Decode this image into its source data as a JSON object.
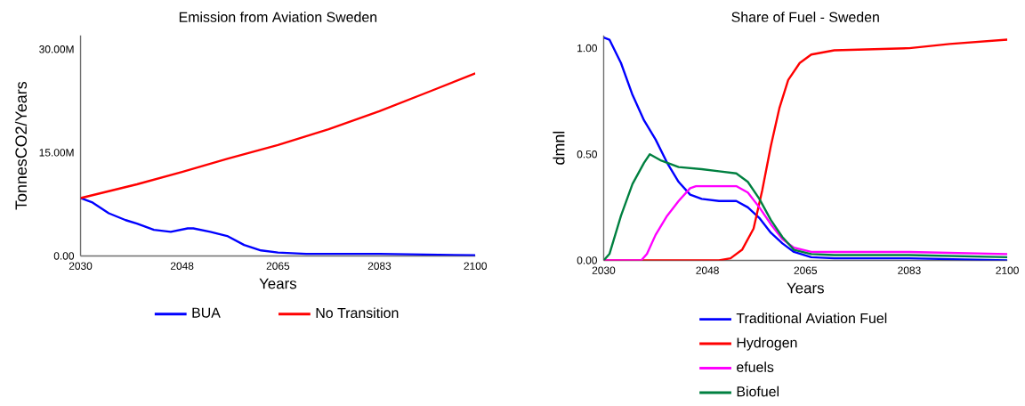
{
  "chart_data": [
    {
      "type": "line",
      "title": "Emission from Aviation Sweden",
      "xlabel": "Years",
      "ylabel": "TonnesCO2/Years",
      "xlim": [
        2030,
        2100
      ],
      "xticks": [
        2030,
        2048,
        2065,
        2083,
        2100
      ],
      "ylim": [
        0,
        32000000
      ],
      "yticks": [
        {
          "value": 0,
          "label": "0.00"
        },
        {
          "value": 15000000,
          "label": "15.00M"
        },
        {
          "value": 30000000,
          "label": "30.00M"
        }
      ],
      "legend": "bottom",
      "series": [
        {
          "name": "BUA",
          "color": "#0000ff",
          "x": [
            2030,
            2032,
            2035,
            2038,
            2040,
            2043,
            2046,
            2049,
            2050,
            2053,
            2056,
            2059,
            2062,
            2065,
            2070,
            2083,
            2100
          ],
          "values": [
            8400000,
            7800000,
            6200000,
            5200000,
            4700000,
            3800000,
            3500000,
            4000000,
            4000000,
            3500000,
            2900000,
            1600000,
            800000,
            500000,
            300000,
            300000,
            100000
          ]
        },
        {
          "name": "No Transition",
          "color": "#ff0000",
          "x": [
            2030,
            2040,
            2048,
            2056,
            2065,
            2074,
            2083,
            2092,
            2100
          ],
          "values": [
            8400000,
            10400000,
            12200000,
            14100000,
            16100000,
            18400000,
            21000000,
            23900000,
            26500000
          ]
        }
      ]
    },
    {
      "type": "line",
      "title": "Share of Fuel - Sweden",
      "xlabel": "Years",
      "ylabel": "dmnl",
      "xlim": [
        2030,
        2100
      ],
      "xticks": [
        2030,
        2048,
        2065,
        2083,
        2100
      ],
      "ylim": [
        0,
        1.06
      ],
      "yticks": [
        {
          "value": 0,
          "label": "0.00"
        },
        {
          "value": 0.5,
          "label": "0.50"
        },
        {
          "value": 1,
          "label": "1.00"
        }
      ],
      "legend": "bottom",
      "series": [
        {
          "name": "Traditional Aviation Fuel",
          "color": "#0000ff",
          "x": [
            2030,
            2031,
            2033,
            2035,
            2037,
            2039,
            2041,
            2043,
            2045,
            2047,
            2050,
            2053,
            2055,
            2057,
            2059,
            2061,
            2063,
            2066,
            2070,
            2083,
            2100
          ],
          "values": [
            1.05,
            1.04,
            0.93,
            0.78,
            0.66,
            0.57,
            0.46,
            0.37,
            0.31,
            0.29,
            0.28,
            0.28,
            0.25,
            0.2,
            0.13,
            0.08,
            0.04,
            0.015,
            0.01,
            0.01,
            0
          ]
        },
        {
          "name": "Hydrogen",
          "color": "#ff0000",
          "x": [
            2030,
            2050,
            2052,
            2054,
            2056,
            2057.5,
            2059,
            2060.5,
            2062,
            2064,
            2066,
            2070,
            2083,
            2090,
            2100
          ],
          "values": [
            0,
            0,
            0.01,
            0.05,
            0.15,
            0.33,
            0.54,
            0.72,
            0.85,
            0.93,
            0.97,
            0.99,
            1.0,
            1.02,
            1.04
          ]
        },
        {
          "name": "efuels",
          "color": "#ff00ff",
          "x": [
            2030,
            2036.5,
            2037.5,
            2039,
            2041,
            2043,
            2045,
            2046,
            2050,
            2053,
            2055,
            2057,
            2059,
            2061,
            2063,
            2066,
            2070,
            2083,
            2100
          ],
          "values": [
            0,
            0,
            0.03,
            0.12,
            0.21,
            0.28,
            0.34,
            0.35,
            0.35,
            0.35,
            0.32,
            0.25,
            0.17,
            0.1,
            0.06,
            0.04,
            0.04,
            0.04,
            0.03
          ]
        },
        {
          "name": "Biofuel",
          "color": "#008040",
          "x": [
            2030,
            2031,
            2033,
            2035,
            2037,
            2038,
            2040,
            2043,
            2047,
            2050,
            2053,
            2055,
            2057,
            2059,
            2061,
            2063,
            2066,
            2070,
            2083,
            2100
          ],
          "values": [
            0,
            0.03,
            0.21,
            0.36,
            0.46,
            0.5,
            0.47,
            0.44,
            0.43,
            0.42,
            0.41,
            0.37,
            0.29,
            0.19,
            0.11,
            0.05,
            0.03,
            0.025,
            0.025,
            0.015
          ]
        }
      ]
    }
  ]
}
